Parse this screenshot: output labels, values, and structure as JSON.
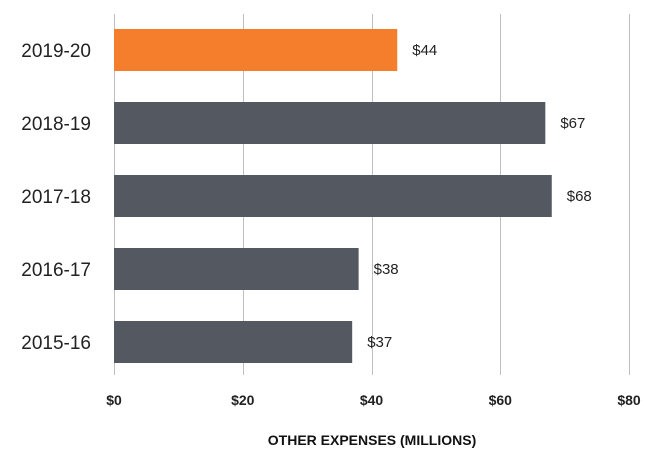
{
  "chart_data": {
    "type": "bar",
    "orientation": "horizontal",
    "categories": [
      "2019-20",
      "2018-19",
      "2017-18",
      "2016-17",
      "2015-16"
    ],
    "values": [
      44,
      67,
      68,
      38,
      37
    ],
    "value_labels": [
      "$44",
      "$67",
      "$68",
      "$38",
      "$37"
    ],
    "xlabel": "OTHER EXPENSES (MILLIONS)",
    "xlim": [
      0,
      80
    ],
    "ticks": [
      0,
      20,
      40,
      60,
      80
    ],
    "tick_labels": [
      "$0",
      "$20",
      "$40",
      "$60",
      "$80"
    ],
    "grid": true,
    "legend": "none",
    "colors": {
      "highlight": "#F47E2C",
      "bar": "#545860",
      "gridline": "#bfbfbf",
      "text": "#222222"
    },
    "highlight_index": 0
  }
}
